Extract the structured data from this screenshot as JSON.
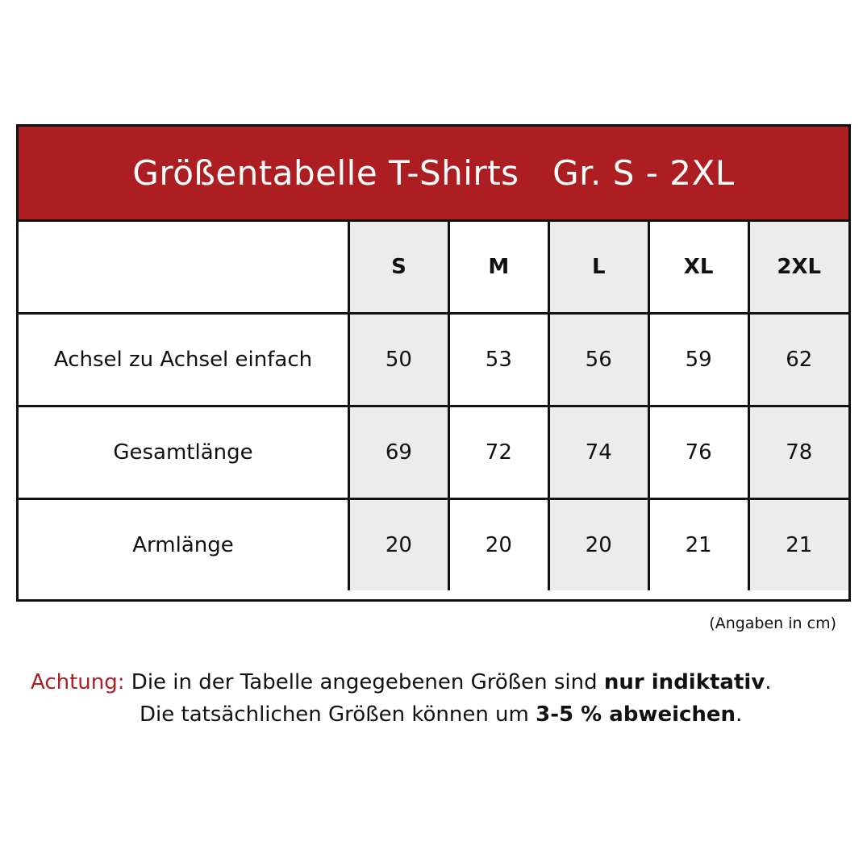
{
  "title": "Größentabelle T-Shirts   Gr. S - 2XL",
  "colors": {
    "header": "#ad1e22",
    "shade": "#ececec",
    "warning": "#ad1e22"
  },
  "sizes": [
    "S",
    "M",
    "L",
    "XL",
    "2XL"
  ],
  "rows": [
    {
      "label": "Achsel zu Achsel einfach",
      "values": [
        "50",
        "53",
        "56",
        "59",
        "62"
      ]
    },
    {
      "label": "Gesamtlänge",
      "values": [
        "69",
        "72",
        "74",
        "76",
        "78"
      ]
    },
    {
      "label": "Armlänge",
      "values": [
        "20",
        "20",
        "20",
        "21",
        "21"
      ]
    }
  ],
  "unit_note": "(Angaben in cm)",
  "note": {
    "warning_label": "Achtung:",
    "line1_text": " Die in der Tabelle angegebenen Größen sind ",
    "line1_bold": "nur indiktativ",
    "line1_end": ".",
    "line2_text": "Die tatsächlichen Größen können um ",
    "line2_bold": "3-5 % abweichen",
    "line2_end": "."
  }
}
